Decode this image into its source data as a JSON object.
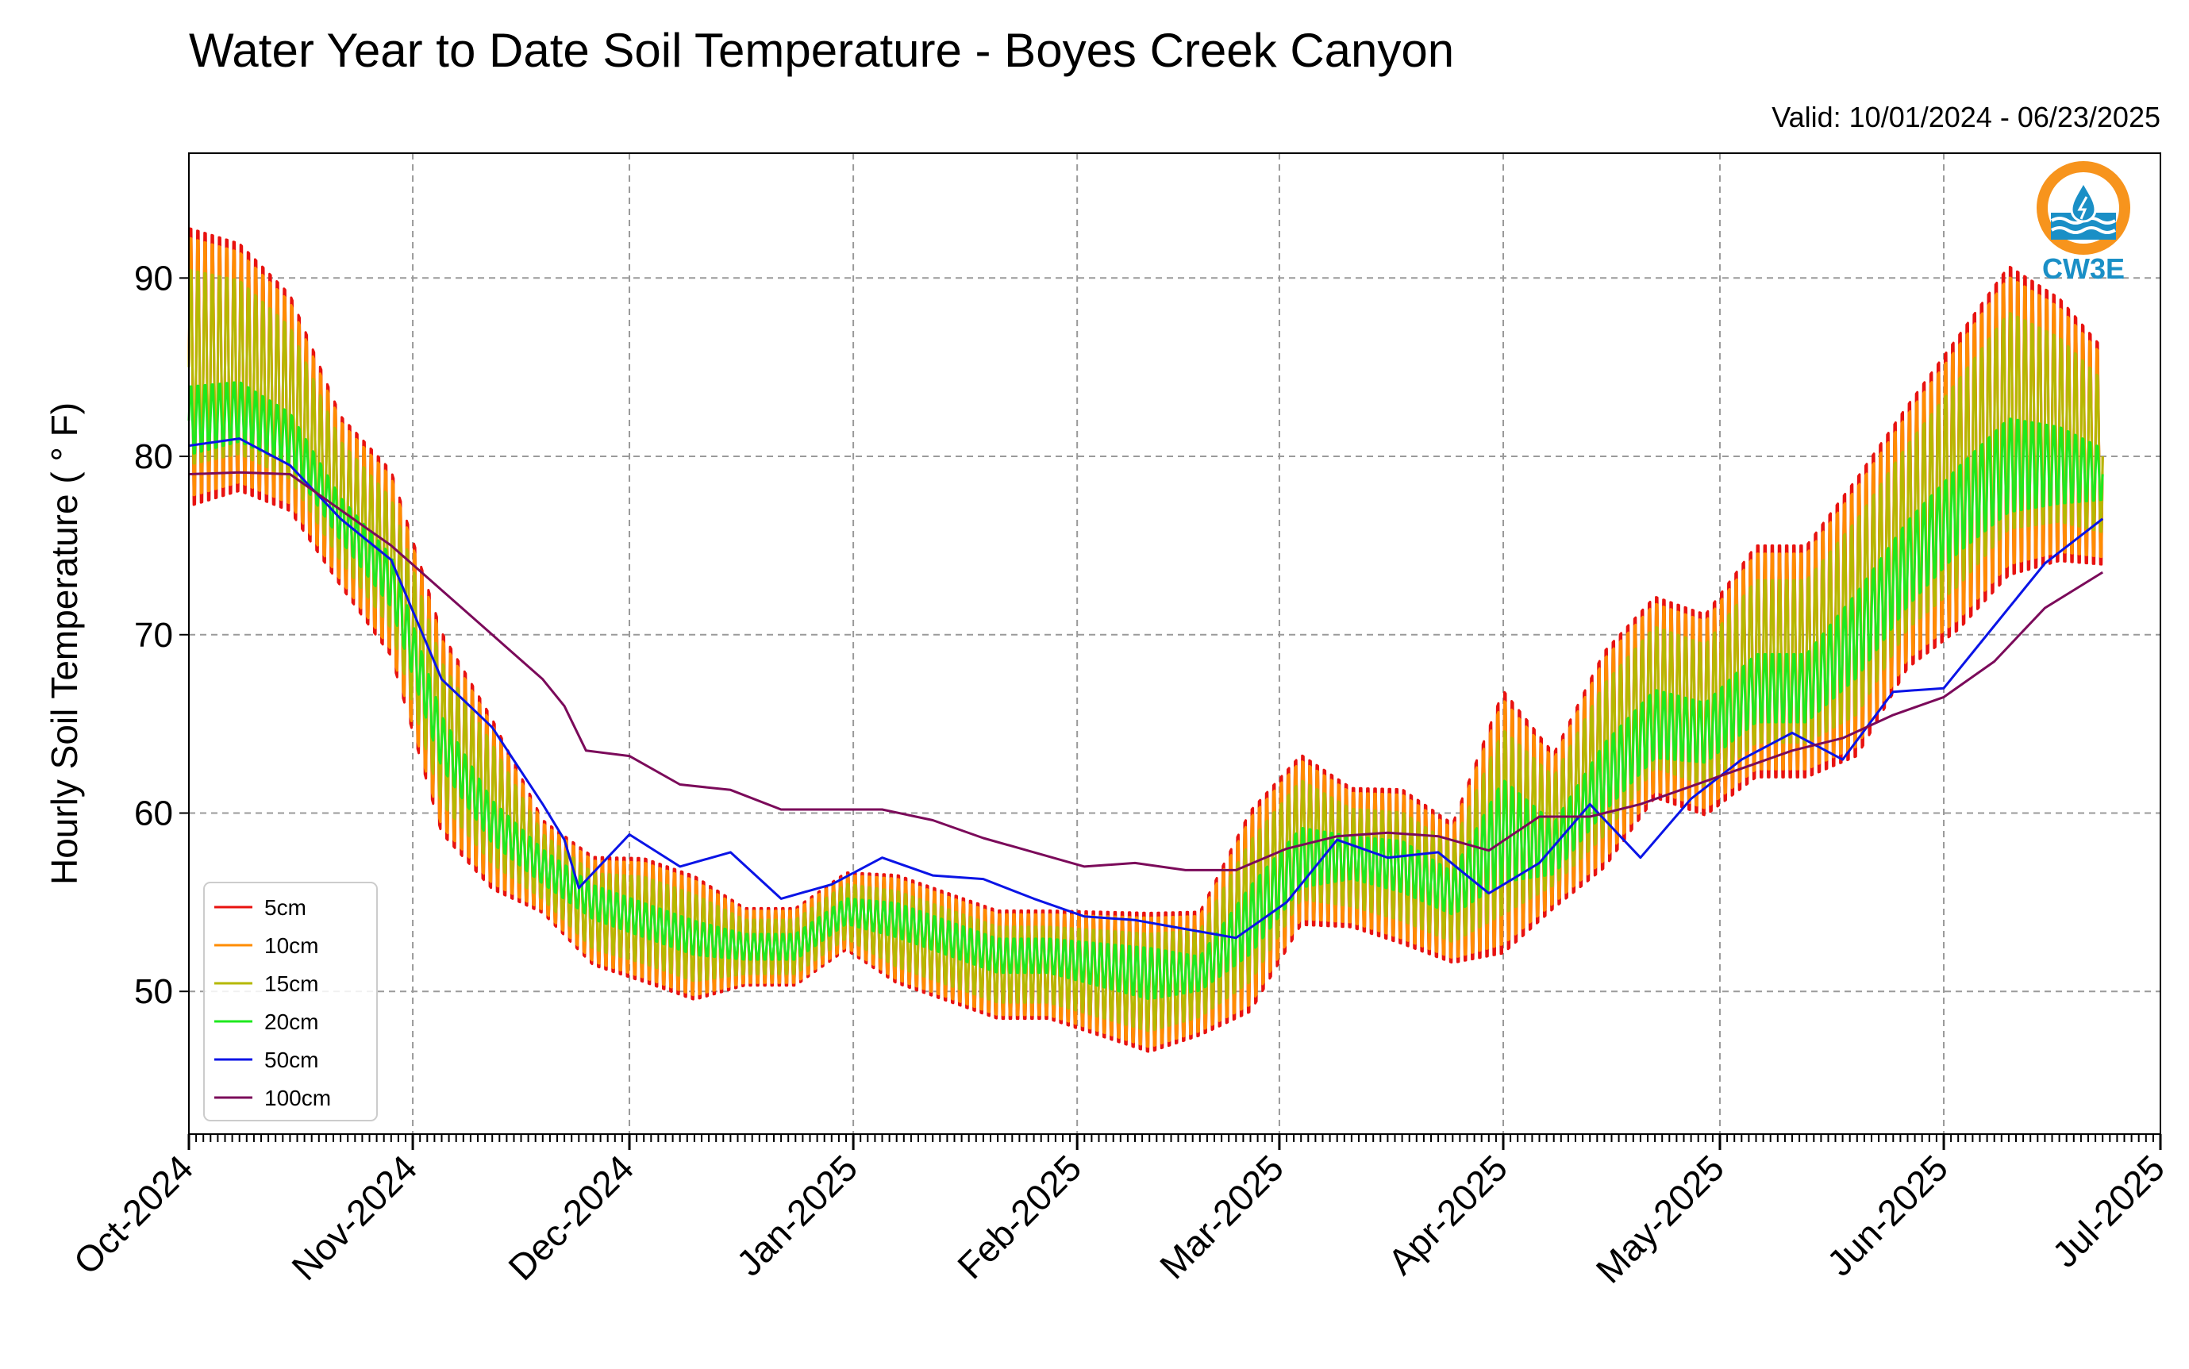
{
  "chart_data": {
    "type": "line",
    "title": "Water Year to Date Soil Temperature - Boyes Creek Canyon",
    "subtitle": "Valid: 10/01/2024 - 06/23/2025",
    "ylabel": "Hourly Soil Temperature ( ° F)",
    "xlabel": "",
    "ylim": [
      42,
      97
    ],
    "xlim": [
      "2024-10-01",
      "2025-07-01"
    ],
    "yticks": [
      50,
      60,
      70,
      80,
      90
    ],
    "xticks": [
      {
        "date": "2024-10-01",
        "label": "Oct-2024"
      },
      {
        "date": "2024-11-01",
        "label": "Nov-2024"
      },
      {
        "date": "2024-12-01",
        "label": "Dec-2024"
      },
      {
        "date": "2025-01-01",
        "label": "Jan-2025"
      },
      {
        "date": "2025-02-01",
        "label": "Feb-2025"
      },
      {
        "date": "2025-03-01",
        "label": "Mar-2025"
      },
      {
        "date": "2025-04-01",
        "label": "Apr-2025"
      },
      {
        "date": "2025-05-01",
        "label": "May-2025"
      },
      {
        "date": "2025-06-01",
        "label": "Jun-2025"
      },
      {
        "date": "2025-07-01",
        "label": "Jul-2025"
      }
    ],
    "grid": true,
    "legend_position": "lower-left",
    "series": [
      {
        "name": "5cm",
        "color": "#e8120f",
        "amplitude": 1.0,
        "x": [
          "2024-10-01",
          "2024-10-08",
          "2024-10-15",
          "2024-10-22",
          "2024-10-29",
          "2024-11-05",
          "2024-11-12",
          "2024-11-19",
          "2024-11-26",
          "2024-12-03",
          "2024-12-10",
          "2024-12-17",
          "2024-12-24",
          "2024-12-31",
          "2025-01-07",
          "2025-01-14",
          "2025-01-21",
          "2025-01-28",
          "2025-02-04",
          "2025-02-11",
          "2025-02-18",
          "2025-02-25",
          "2025-03-04",
          "2025-03-11",
          "2025-03-18",
          "2025-03-25",
          "2025-04-01",
          "2025-04-08",
          "2025-04-15",
          "2025-04-22",
          "2025-04-29",
          "2025-05-06",
          "2025-05-13",
          "2025-05-20",
          "2025-05-27",
          "2025-06-03",
          "2025-06-10",
          "2025-06-17",
          "2025-06-23"
        ],
        "min": [
          76,
          77,
          76,
          72,
          68,
          58,
          55,
          54,
          51,
          50,
          49,
          50,
          50,
          52,
          50,
          49,
          48,
          48,
          47,
          46,
          47,
          48,
          53,
          53,
          52,
          51,
          51,
          54,
          56,
          60,
          59,
          61,
          61,
          62,
          67,
          69,
          72,
          73,
          73
        ],
        "max": [
          94,
          93,
          90,
          83,
          80,
          71,
          66,
          60,
          58,
          58,
          57,
          55,
          55,
          57,
          57,
          56,
          55,
          55,
          55,
          55,
          55,
          61,
          64,
          62,
          62,
          60,
          68,
          64,
          70,
          73,
          72,
          76,
          76,
          80,
          84,
          88,
          92,
          90,
          87
        ]
      },
      {
        "name": "10cm",
        "color": "#ff8c00",
        "amplitude": 0.93,
        "x": [
          "2024-10-01",
          "2024-10-08",
          "2024-10-15",
          "2024-10-22",
          "2024-10-29",
          "2024-11-05",
          "2024-11-12",
          "2024-11-19",
          "2024-11-26",
          "2024-12-03",
          "2024-12-10",
          "2024-12-17",
          "2024-12-24",
          "2024-12-31",
          "2025-01-07",
          "2025-01-14",
          "2025-01-21",
          "2025-01-28",
          "2025-02-04",
          "2025-02-11",
          "2025-02-18",
          "2025-02-25",
          "2025-03-04",
          "2025-03-11",
          "2025-03-18",
          "2025-03-25",
          "2025-04-01",
          "2025-04-08",
          "2025-04-15",
          "2025-04-22",
          "2025-04-29",
          "2025-05-06",
          "2025-05-13",
          "2025-05-20",
          "2025-05-27",
          "2025-06-03",
          "2025-06-10",
          "2025-06-17",
          "2025-06-23"
        ],
        "min": [
          76,
          77,
          76,
          72,
          68,
          58,
          55,
          54,
          51,
          50,
          49,
          50,
          50,
          52,
          50,
          49,
          48,
          48,
          47,
          46,
          47,
          48,
          53,
          53,
          52,
          51,
          51,
          54,
          56,
          60,
          59,
          61,
          61,
          62,
          67,
          69,
          72,
          73,
          73
        ],
        "max": [
          94,
          93,
          90,
          83,
          80,
          71,
          66,
          60,
          58,
          58,
          57,
          55,
          55,
          57,
          57,
          56,
          55,
          55,
          55,
          55,
          55,
          61,
          64,
          62,
          62,
          60,
          68,
          64,
          70,
          73,
          72,
          76,
          76,
          80,
          84,
          88,
          92,
          90,
          87
        ]
      },
      {
        "name": "15cm",
        "color": "#b5b800",
        "amplitude": 0.7,
        "x": [
          "2024-10-01",
          "2024-10-08",
          "2024-10-15",
          "2024-10-22",
          "2024-10-29",
          "2024-11-05",
          "2024-11-12",
          "2024-11-19",
          "2024-11-26",
          "2024-12-03",
          "2024-12-10",
          "2024-12-17",
          "2024-12-24",
          "2024-12-31",
          "2025-01-07",
          "2025-01-14",
          "2025-01-21",
          "2025-01-28",
          "2025-02-04",
          "2025-02-11",
          "2025-02-18",
          "2025-02-25",
          "2025-03-04",
          "2025-03-11",
          "2025-03-18",
          "2025-03-25",
          "2025-04-01",
          "2025-04-08",
          "2025-04-15",
          "2025-04-22",
          "2025-04-29",
          "2025-05-06",
          "2025-05-13",
          "2025-05-20",
          "2025-05-27",
          "2025-06-03",
          "2025-06-10",
          "2025-06-17",
          "2025-06-23"
        ],
        "min": [
          76,
          77,
          76,
          72,
          68,
          58,
          55,
          54,
          51,
          50,
          49,
          50,
          50,
          52,
          50,
          49,
          48,
          48,
          47,
          46,
          47,
          48,
          53,
          53,
          52,
          51,
          51,
          54,
          56,
          60,
          59,
          61,
          61,
          62,
          67,
          69,
          72,
          73,
          73
        ],
        "max": [
          94,
          93,
          90,
          83,
          80,
          71,
          66,
          60,
          58,
          58,
          57,
          55,
          55,
          57,
          57,
          56,
          55,
          55,
          55,
          55,
          55,
          61,
          64,
          62,
          62,
          60,
          68,
          64,
          70,
          73,
          72,
          76,
          76,
          80,
          84,
          88,
          92,
          90,
          87
        ]
      },
      {
        "name": "20cm",
        "color": "#1ee81e",
        "amplitude": 0.55,
        "x": [
          "2024-10-01",
          "2024-10-08",
          "2024-10-15",
          "2024-10-22",
          "2024-10-29",
          "2024-11-05",
          "2024-11-12",
          "2024-11-19",
          "2024-11-26",
          "2024-12-03",
          "2024-12-10",
          "2024-12-17",
          "2024-12-24",
          "2024-12-31",
          "2025-01-07",
          "2025-01-14",
          "2025-01-21",
          "2025-01-28",
          "2025-02-04",
          "2025-02-11",
          "2025-02-18",
          "2025-02-25",
          "2025-03-04",
          "2025-03-11",
          "2025-03-18",
          "2025-03-25",
          "2025-04-01",
          "2025-04-08",
          "2025-04-15",
          "2025-04-22",
          "2025-04-29",
          "2025-05-06",
          "2025-05-13",
          "2025-05-20",
          "2025-05-27",
          "2025-06-03",
          "2025-06-10",
          "2025-06-17",
          "2025-06-23"
        ],
        "min": [
          78,
          79,
          78,
          74,
          70,
          61,
          57,
          55,
          53,
          52,
          51,
          51,
          51,
          53,
          52,
          51,
          50,
          50,
          49,
          48,
          49,
          50,
          54,
          55,
          54,
          53,
          53,
          55,
          58,
          61,
          61,
          63,
          63,
          65,
          69,
          72,
          74,
          75,
          76
        ],
        "max": [
          86,
          86,
          84,
          79,
          76,
          67,
          62,
          59,
          57,
          56,
          55,
          54,
          54,
          56,
          56,
          55,
          54,
          54,
          54,
          54,
          53,
          58,
          61,
          60,
          60,
          58,
          65,
          61,
          66,
          69,
          68,
          71,
          71,
          75,
          79,
          82,
          85,
          84,
          82
        ]
      },
      {
        "name": "50cm",
        "color": "#0a14e6",
        "x": [
          "2024-10-01",
          "2024-10-08",
          "2024-10-15",
          "2024-10-22",
          "2024-10-29",
          "2024-11-05",
          "2024-11-12",
          "2024-11-19",
          "2024-11-22",
          "2024-11-24",
          "2024-12-01",
          "2024-12-08",
          "2024-12-15",
          "2024-12-22",
          "2024-12-29",
          "2025-01-05",
          "2025-01-12",
          "2025-01-19",
          "2025-01-26",
          "2025-02-02",
          "2025-02-09",
          "2025-02-16",
          "2025-02-23",
          "2025-03-02",
          "2025-03-09",
          "2025-03-16",
          "2025-03-23",
          "2025-03-30",
          "2025-04-06",
          "2025-04-13",
          "2025-04-20",
          "2025-04-27",
          "2025-05-04",
          "2025-05-11",
          "2025-05-18",
          "2025-05-25",
          "2025-06-01",
          "2025-06-08",
          "2025-06-15",
          "2025-06-23"
        ],
        "y": [
          80.6,
          81.0,
          79.5,
          76.5,
          74.2,
          67.5,
          64.8,
          60.5,
          58.5,
          55.8,
          58.8,
          57.0,
          57.8,
          55.2,
          56.0,
          57.5,
          56.5,
          56.3,
          55.2,
          54.2,
          54.0,
          53.5,
          53.0,
          55.0,
          58.5,
          57.5,
          57.8,
          55.5,
          57.2,
          60.5,
          57.5,
          60.8,
          63.0,
          64.5,
          63.0,
          66.8,
          67.0,
          70.5,
          74.0,
          76.5
        ]
      },
      {
        "name": "100cm",
        "color": "#7b0a5a",
        "x": [
          "2024-10-01",
          "2024-10-08",
          "2024-10-15",
          "2024-10-22",
          "2024-10-29",
          "2024-11-05",
          "2024-11-12",
          "2024-11-19",
          "2024-11-22",
          "2024-11-25",
          "2024-12-01",
          "2024-12-08",
          "2024-12-15",
          "2024-12-22",
          "2024-12-29",
          "2025-01-05",
          "2025-01-12",
          "2025-01-19",
          "2025-01-26",
          "2025-02-02",
          "2025-02-09",
          "2025-02-16",
          "2025-02-23",
          "2025-03-02",
          "2025-03-09",
          "2025-03-16",
          "2025-03-23",
          "2025-03-30",
          "2025-04-06",
          "2025-04-13",
          "2025-04-20",
          "2025-04-27",
          "2025-05-04",
          "2025-05-11",
          "2025-05-18",
          "2025-05-25",
          "2025-06-01",
          "2025-06-08",
          "2025-06-15",
          "2025-06-23"
        ],
        "y": [
          79.0,
          79.1,
          79.0,
          77.0,
          75.0,
          72.5,
          70.0,
          67.5,
          66.0,
          63.5,
          63.2,
          61.6,
          61.3,
          60.2,
          60.2,
          60.2,
          59.6,
          58.6,
          57.8,
          57.0,
          57.2,
          56.8,
          56.8,
          58.0,
          58.7,
          58.9,
          58.7,
          57.9,
          59.8,
          59.8,
          60.5,
          61.5,
          62.5,
          63.5,
          64.2,
          65.5,
          66.5,
          68.5,
          71.5,
          73.5
        ]
      }
    ]
  },
  "logo": {
    "text": "CW3E",
    "ring_color": "#f7941d",
    "accent_color": "#1a8fc6"
  }
}
